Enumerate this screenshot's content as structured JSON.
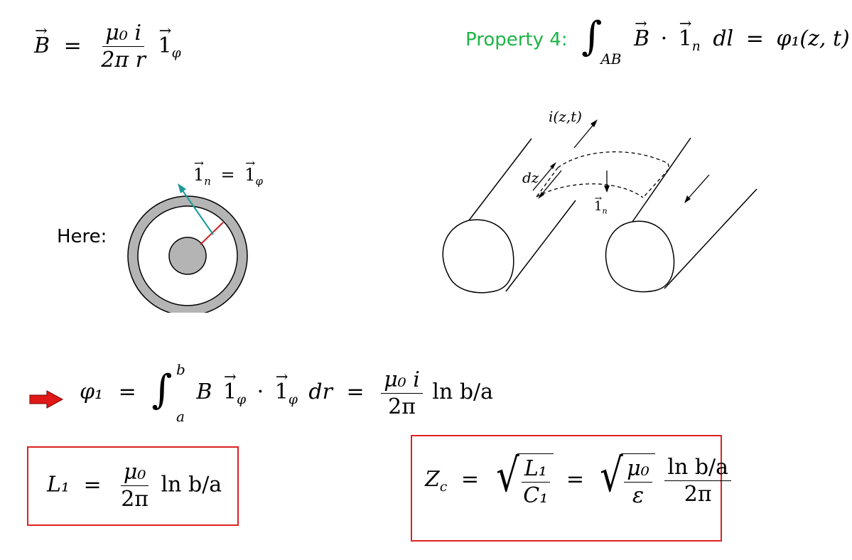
{
  "eq_field": {
    "B": "B",
    "equals": "=",
    "num": "μ₀ i",
    "den": "2π r",
    "unit": "1",
    "unit_sub": "φ"
  },
  "property": {
    "label": "Property 4:",
    "color": "#1db446",
    "sub": "AB",
    "B": "B",
    "dot": "·",
    "unit": "1",
    "unit_sub": "n",
    "dl": "dl",
    "equals": "=",
    "rhs": "φ₁(z, t)"
  },
  "here": {
    "label": "Here:"
  },
  "coax_label": {
    "lhs": "1",
    "lhs_sub": "n",
    "equals": "=",
    "rhs": "1",
    "rhs_sub": "φ"
  },
  "lines_labels": {
    "current": "i(z,t)",
    "dz": "dz",
    "normal": "1",
    "normal_sub": "n"
  },
  "eq_flux": {
    "lhs": "φ₁",
    "equals": "=",
    "upper": "b",
    "lower": "a",
    "integrand_B": "B",
    "unit": "1",
    "unit_sub": "φ",
    "dot": "·",
    "dr": "dr",
    "equals2": "=",
    "num": "μ₀ i",
    "den": "2π",
    "tail": "ln b/a"
  },
  "eq_L": {
    "lhs": "L₁",
    "equals": "=",
    "num": "μ₀",
    "den": "2π",
    "tail": "ln b/a"
  },
  "eq_Z": {
    "lhs": "Z",
    "lhs_sub": "c",
    "equals": "=",
    "num1": "L₁",
    "den1": "C₁",
    "equals2": "=",
    "num2": "μ₀",
    "den2": "ε",
    "num3": "ln b/a",
    "den3": "2π"
  },
  "colors": {
    "box": "#dd2222",
    "arrow": "#e01818",
    "normal_vec": "#1a9a9a",
    "radius": "#cc2222",
    "shell": "#b4b4b4"
  }
}
